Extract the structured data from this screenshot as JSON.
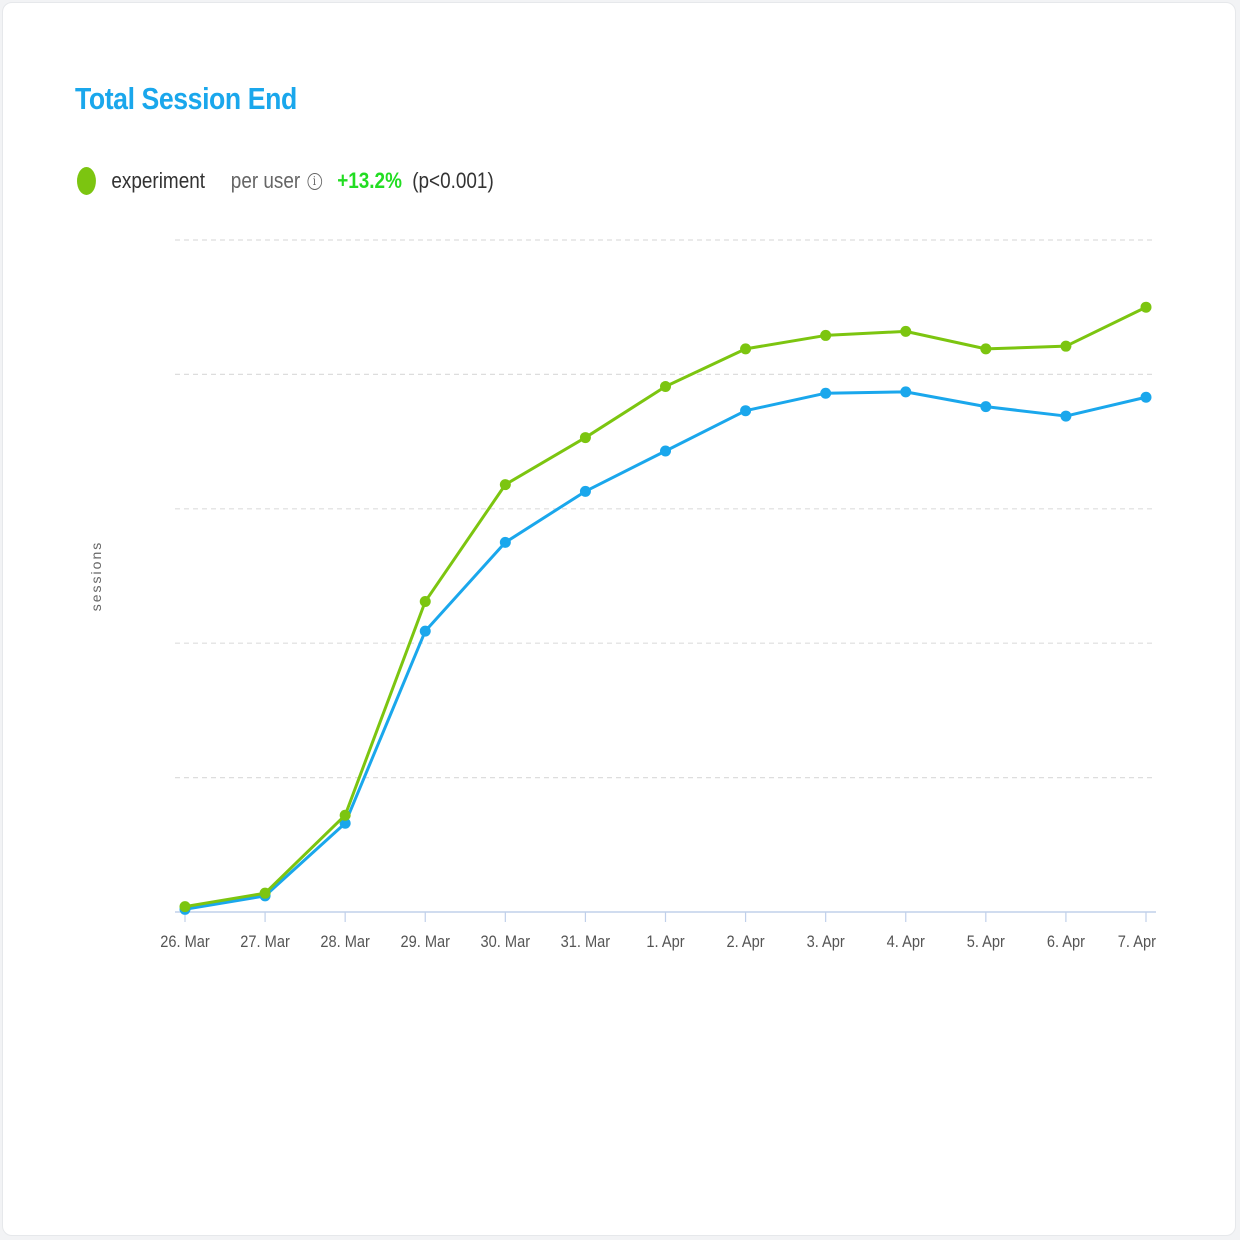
{
  "title": "Total Session End",
  "legend": {
    "series_name": "experiment",
    "mode": "per user",
    "delta": "+13.2%",
    "pvalue": "(p<0.001)"
  },
  "colors": {
    "title": "#1aa7ec",
    "experiment": "#7cc510",
    "control": "#1aa7ec",
    "delta": "#22dd22",
    "grid": "#dddddd",
    "axis": "#c0d0ea",
    "tick_text": "#555555",
    "axis_label": "#666666"
  },
  "icons": {
    "info": "info-icon",
    "legend_marker": "circle-marker"
  },
  "chart_data": {
    "type": "line",
    "title": "Total Session End",
    "ylabel": "sessions",
    "xlabel": "",
    "categories": [
      "26. Mar",
      "27. Mar",
      "28. Mar",
      "29. Mar",
      "30. Mar",
      "31. Mar",
      "1. Apr",
      "2. Apr",
      "3. Apr",
      "4. Apr",
      "5. Apr",
      "6. Apr",
      "7. Apr"
    ],
    "ylim": [
      0,
      5
    ],
    "grid": true,
    "y_ticks_labeled": false,
    "legend_position": "top-left",
    "series": [
      {
        "name": "experiment",
        "color": "#7cc510",
        "values": [
          0.04,
          0.14,
          0.72,
          2.31,
          3.18,
          3.53,
          3.91,
          4.19,
          4.29,
          4.32,
          4.19,
          4.21,
          4.5
        ]
      },
      {
        "color": "#1aa7ec",
        "values": [
          0.02,
          0.12,
          0.66,
          2.09,
          2.75,
          3.13,
          3.43,
          3.73,
          3.86,
          3.87,
          3.76,
          3.69,
          3.83
        ]
      }
    ]
  }
}
